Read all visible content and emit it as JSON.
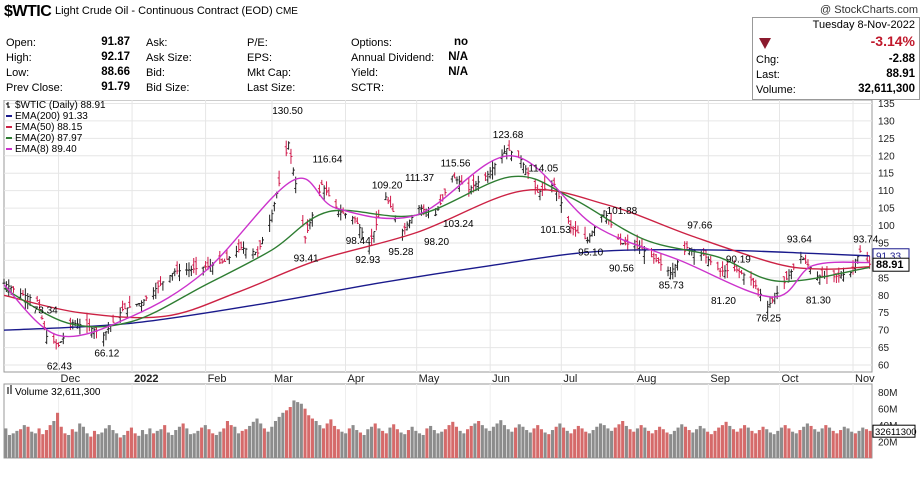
{
  "header": {
    "symbol": "$WTIC",
    "description": "Light Crude Oil - Continuous Contract (EOD)",
    "exchange": "CME",
    "copyright": "@ StockCharts.com",
    "date": "Tuesday  8-Nov-2022",
    "change_pct": "-3.14%",
    "arrow_color": "#8b1a2e",
    "stats": [
      {
        "label": "Open:",
        "value": "91.87"
      },
      {
        "label": "High:",
        "value": "92.17"
      },
      {
        "label": "Low:",
        "value": "88.66"
      },
      {
        "label": "Prev Close:",
        "value": "91.79"
      }
    ],
    "col2": [
      "Ask:",
      "Ask Size:",
      "Bid:",
      "Bid Size:"
    ],
    "col3": [
      "P/E:",
      "EPS:",
      "Mkt Cap:",
      "Last Size:"
    ],
    "col4": [
      {
        "label": "Options:",
        "value": "no"
      },
      {
        "label": "Annual Dividend:",
        "value": "N/A"
      },
      {
        "label": "Yield:",
        "value": "N/A"
      },
      {
        "label": "SCTR:",
        "value": ""
      }
    ],
    "right": [
      {
        "label": "Chg:",
        "value": "-2.88"
      },
      {
        "label": "Last:",
        "value": "88.91"
      },
      {
        "label": "Volume:",
        "value": "32,611,300"
      }
    ]
  },
  "legend": [
    {
      "text": "$WTIC (Daily) 88.91",
      "color": "#000000"
    },
    {
      "text": "EMA(200) 91.33",
      "color": "#1a1a8c"
    },
    {
      "text": "EMA(50) 88.15",
      "color": "#cc2244"
    },
    {
      "text": "EMA(20) 87.97",
      "color": "#2e7d32"
    },
    {
      "text": "EMA(8) 89.40",
      "color": "#cc33cc"
    }
  ],
  "chart_data": {
    "type": "line",
    "title": "$WTIC (Daily) 88.91",
    "x_labels": [
      "Dec",
      "2022",
      "Feb",
      "Mar",
      "Apr",
      "May",
      "Jun",
      "Jul",
      "Aug",
      "Sep",
      "Oct",
      "Nov"
    ],
    "y_ticks": [
      60,
      65,
      70,
      75,
      80,
      85,
      90,
      95,
      100,
      105,
      110,
      115,
      120,
      125,
      130,
      135
    ],
    "ylim": [
      58,
      136
    ],
    "last_value_label": "88.91",
    "ema200_label": "91.33",
    "price_points": [
      [
        "2021-11-08",
        83.5
      ],
      [
        "2021-11-15",
        80.5
      ],
      [
        "2021-11-22",
        78.5
      ],
      [
        "2021-11-26",
        68.2
      ],
      [
        "2021-12-01",
        65.6
      ],
      [
        "2021-12-07",
        72.1
      ],
      [
        "2021-12-14",
        70.9
      ],
      [
        "2021-12-20",
        68.6
      ],
      [
        "2021-12-28",
        75.9
      ],
      [
        "2022-01-05",
        77.9
      ],
      [
        "2022-01-12",
        82.6
      ],
      [
        "2022-01-19",
        86.9
      ],
      [
        "2022-01-26",
        87.4
      ],
      [
        "2022-02-02",
        88.3
      ],
      [
        "2022-02-09",
        89.7
      ],
      [
        "2022-02-16",
        93.7
      ],
      [
        "2022-02-23",
        92.1
      ],
      [
        "2022-03-01",
        103.4
      ],
      [
        "2022-03-08",
        123.7
      ],
      [
        "2022-03-15",
        96.4
      ],
      [
        "2022-03-22",
        111.8
      ],
      [
        "2022-03-29",
        104.2
      ],
      [
        "2022-04-05",
        101.9
      ],
      [
        "2022-04-11",
        94.3
      ],
      [
        "2022-04-18",
        108.2
      ],
      [
        "2022-04-25",
        98.5
      ],
      [
        "2022-05-02",
        105.2
      ],
      [
        "2022-05-09",
        103.1
      ],
      [
        "2022-05-16",
        114.2
      ],
      [
        "2022-05-23",
        110.3
      ],
      [
        "2022-05-31",
        114.7
      ],
      [
        "2022-06-08",
        122.1
      ],
      [
        "2022-06-14",
        118.9
      ],
      [
        "2022-06-21",
        109.5
      ],
      [
        "2022-06-28",
        111.8
      ],
      [
        "2022-07-05",
        99.5
      ],
      [
        "2022-07-12",
        95.8
      ],
      [
        "2022-07-19",
        104.2
      ],
      [
        "2022-07-26",
        94.9
      ],
      [
        "2022-08-02",
        94.4
      ],
      [
        "2022-08-09",
        90.5
      ],
      [
        "2022-08-16",
        86.5
      ],
      [
        "2022-08-23",
        93.7
      ],
      [
        "2022-08-30",
        91.6
      ],
      [
        "2022-09-06",
        86.9
      ],
      [
        "2022-09-13",
        87.3
      ],
      [
        "2022-09-20",
        83.9
      ],
      [
        "2022-09-26",
        76.7
      ],
      [
        "2022-10-03",
        83.6
      ],
      [
        "2022-10-10",
        91.1
      ],
      [
        "2022-10-17",
        85.5
      ],
      [
        "2022-10-24",
        85.3
      ],
      [
        "2022-10-31",
        86.5
      ],
      [
        "2022-11-04",
        92.6
      ],
      [
        "2022-11-08",
        88.9
      ]
    ],
    "series": [
      {
        "name": "EMA(200)",
        "color": "#1a1a8c",
        "values": [
          [
            "2021-11-08",
            70.0
          ],
          [
            "2022-01-01",
            72.0
          ],
          [
            "2022-03-01",
            78.0
          ],
          [
            "2022-04-15",
            83.5
          ],
          [
            "2022-06-01",
            88.5
          ],
          [
            "2022-07-15",
            92.5
          ],
          [
            "2022-09-01",
            93.0
          ],
          [
            "2022-10-15",
            92.0
          ],
          [
            "2022-11-08",
            91.3
          ]
        ]
      },
      {
        "name": "EMA(50)",
        "color": "#cc2244",
        "values": [
          [
            "2021-11-08",
            80.0
          ],
          [
            "2021-12-10",
            75.0
          ],
          [
            "2022-01-15",
            74.0
          ],
          [
            "2022-02-15",
            81.0
          ],
          [
            "2022-03-20",
            90.0
          ],
          [
            "2022-05-01",
            98.0
          ],
          [
            "2022-06-15",
            110.0
          ],
          [
            "2022-07-20",
            106.0
          ],
          [
            "2022-08-25",
            97.0
          ],
          [
            "2022-09-30",
            89.0
          ],
          [
            "2022-10-20",
            87.5
          ],
          [
            "2022-11-08",
            88.2
          ]
        ]
      },
      {
        "name": "EMA(20)",
        "color": "#2e7d32",
        "values": [
          [
            "2021-11-08",
            82.0
          ],
          [
            "2021-12-05",
            72.0
          ],
          [
            "2022-01-01",
            72.5
          ],
          [
            "2022-02-01",
            83.0
          ],
          [
            "2022-03-01",
            93.0
          ],
          [
            "2022-03-25",
            104.0
          ],
          [
            "2022-05-01",
            103.0
          ],
          [
            "2022-06-10",
            114.0
          ],
          [
            "2022-07-05",
            108.0
          ],
          [
            "2022-08-05",
            96.0
          ],
          [
            "2022-09-05",
            91.0
          ],
          [
            "2022-10-01",
            84.0
          ],
          [
            "2022-11-08",
            88.0
          ]
        ]
      },
      {
        "name": "EMA(8)",
        "color": "#cc33cc",
        "values": [
          [
            "2021-11-08",
            83.0
          ],
          [
            "2021-12-01",
            68.5
          ],
          [
            "2022-01-01",
            74.0
          ],
          [
            "2022-02-01",
            87.0
          ],
          [
            "2022-03-10",
            113.0
          ],
          [
            "2022-03-28",
            105.0
          ],
          [
            "2022-05-01",
            103.0
          ],
          [
            "2022-06-10",
            120.0
          ],
          [
            "2022-07-15",
            100.0
          ],
          [
            "2022-08-20",
            90.0
          ],
          [
            "2022-09-28",
            79.5
          ],
          [
            "2022-10-15",
            88.5
          ],
          [
            "2022-11-08",
            89.4
          ]
        ]
      }
    ],
    "annotations": [
      {
        "date": "2021-12-02",
        "value": 62.43,
        "text": "62.43",
        "pos": "below"
      },
      {
        "date": "2021-11-26",
        "value": 73.34,
        "text": "73.34",
        "pos": "above"
      },
      {
        "date": "2021-12-22",
        "value": 66.12,
        "text": "66.12",
        "pos": "below"
      },
      {
        "date": "2022-03-07",
        "value": 130.5,
        "text": "130.50",
        "pos": "above"
      },
      {
        "date": "2022-03-16",
        "value": 93.41,
        "text": "93.41",
        "pos": "below"
      },
      {
        "date": "2022-03-24",
        "value": 116.64,
        "text": "116.64",
        "pos": "above"
      },
      {
        "date": "2022-04-07",
        "value": 98.44,
        "text": "98.44",
        "pos": "below"
      },
      {
        "date": "2022-04-11",
        "value": 92.93,
        "text": "92.93",
        "pos": "below"
      },
      {
        "date": "2022-04-18",
        "value": 109.2,
        "text": "109.20",
        "pos": "above"
      },
      {
        "date": "2022-04-25",
        "value": 95.28,
        "text": "95.28",
        "pos": "below"
      },
      {
        "date": "2022-05-02",
        "value": 111.37,
        "text": "111.37",
        "pos": "above"
      },
      {
        "date": "2022-05-10",
        "value": 98.2,
        "text": "98.20",
        "pos": "below"
      },
      {
        "date": "2022-05-17",
        "value": 115.56,
        "text": "115.56",
        "pos": "above"
      },
      {
        "date": "2022-05-18",
        "value": 103.24,
        "text": "103.24",
        "pos": "below"
      },
      {
        "date": "2022-06-08",
        "value": 123.68,
        "text": "123.68",
        "pos": "above"
      },
      {
        "date": "2022-06-23",
        "value": 114.05,
        "text": "114.05",
        "pos": "above"
      },
      {
        "date": "2022-06-28",
        "value": 101.53,
        "text": "101.53",
        "pos": "below"
      },
      {
        "date": "2022-07-14",
        "value": 95.1,
        "text": "95.10",
        "pos": "below"
      },
      {
        "date": "2022-07-26",
        "value": 101.88,
        "text": "101.88",
        "pos": "above"
      },
      {
        "date": "2022-07-27",
        "value": 90.56,
        "text": "90.56",
        "pos": "below"
      },
      {
        "date": "2022-08-17",
        "value": 85.73,
        "text": "85.73",
        "pos": "below"
      },
      {
        "date": "2022-08-29",
        "value": 97.66,
        "text": "97.66",
        "pos": "above"
      },
      {
        "date": "2022-09-05",
        "value": 90.19,
        "text": "90.19",
        "pos": "right"
      },
      {
        "date": "2022-09-08",
        "value": 81.2,
        "text": "81.20",
        "pos": "below"
      },
      {
        "date": "2022-09-27",
        "value": 76.25,
        "text": "76.25",
        "pos": "below"
      },
      {
        "date": "2022-10-10",
        "value": 93.64,
        "text": "93.64",
        "pos": "above"
      },
      {
        "date": "2022-10-18",
        "value": 81.3,
        "text": "81.30",
        "pos": "below"
      },
      {
        "date": "2022-11-07",
        "value": 93.74,
        "text": "93.74",
        "pos": "above"
      }
    ],
    "volume": {
      "label": "Volume 32,611,300",
      "y_ticks": [
        "80M",
        "60M",
        "40M",
        "20M"
      ],
      "last_label": "32611300",
      "ylim": [
        0,
        90
      ],
      "values": [
        36,
        28,
        30,
        33,
        35,
        40,
        38,
        32,
        30,
        36,
        29,
        34,
        40,
        45,
        55,
        38,
        30,
        28,
        35,
        32,
        42,
        38,
        30,
        26,
        33,
        29,
        31,
        36,
        40,
        34,
        30,
        25,
        28,
        33,
        37,
        30,
        27,
        34,
        29,
        36,
        30,
        33,
        35,
        40,
        31,
        28,
        34,
        38,
        42,
        36,
        29,
        30,
        33,
        37,
        40,
        35,
        30,
        28,
        32,
        36,
        45,
        40,
        38,
        30,
        33,
        35,
        39,
        44,
        48,
        42,
        36,
        32,
        38,
        45,
        50,
        55,
        58,
        62,
        70,
        68,
        66,
        60,
        52,
        48,
        45,
        40,
        36,
        42,
        47,
        39,
        35,
        32,
        30,
        36,
        40,
        34,
        31,
        28,
        35,
        38,
        42,
        36,
        33,
        30,
        37,
        41,
        35,
        31,
        29,
        34,
        38,
        33,
        30,
        28,
        36,
        39,
        34,
        30,
        32,
        35,
        40,
        44,
        38,
        33,
        30,
        35,
        39,
        42,
        45,
        40,
        36,
        33,
        38,
        42,
        46,
        40,
        35,
        32,
        37,
        41,
        38,
        34,
        31,
        36,
        40,
        35,
        31,
        29,
        34,
        38,
        42,
        37,
        33,
        30,
        35,
        39,
        36,
        32,
        30,
        34,
        38,
        42,
        40,
        36,
        33,
        37,
        41,
        45,
        39,
        35,
        32,
        36,
        40,
        37,
        33,
        30,
        34,
        38,
        35,
        31,
        29,
        33,
        37,
        41,
        38,
        34,
        31,
        35,
        39,
        36,
        32,
        29,
        33,
        37,
        40,
        44,
        39,
        35,
        32,
        36,
        40,
        37,
        33,
        30,
        34,
        38,
        35,
        31,
        29,
        33,
        37,
        40,
        36,
        32,
        30,
        34,
        38,
        42,
        39,
        35,
        32,
        36,
        40,
        37,
        33,
        30,
        34,
        38,
        36,
        32,
        30,
        33,
        37,
        35,
        33
      ]
    }
  }
}
